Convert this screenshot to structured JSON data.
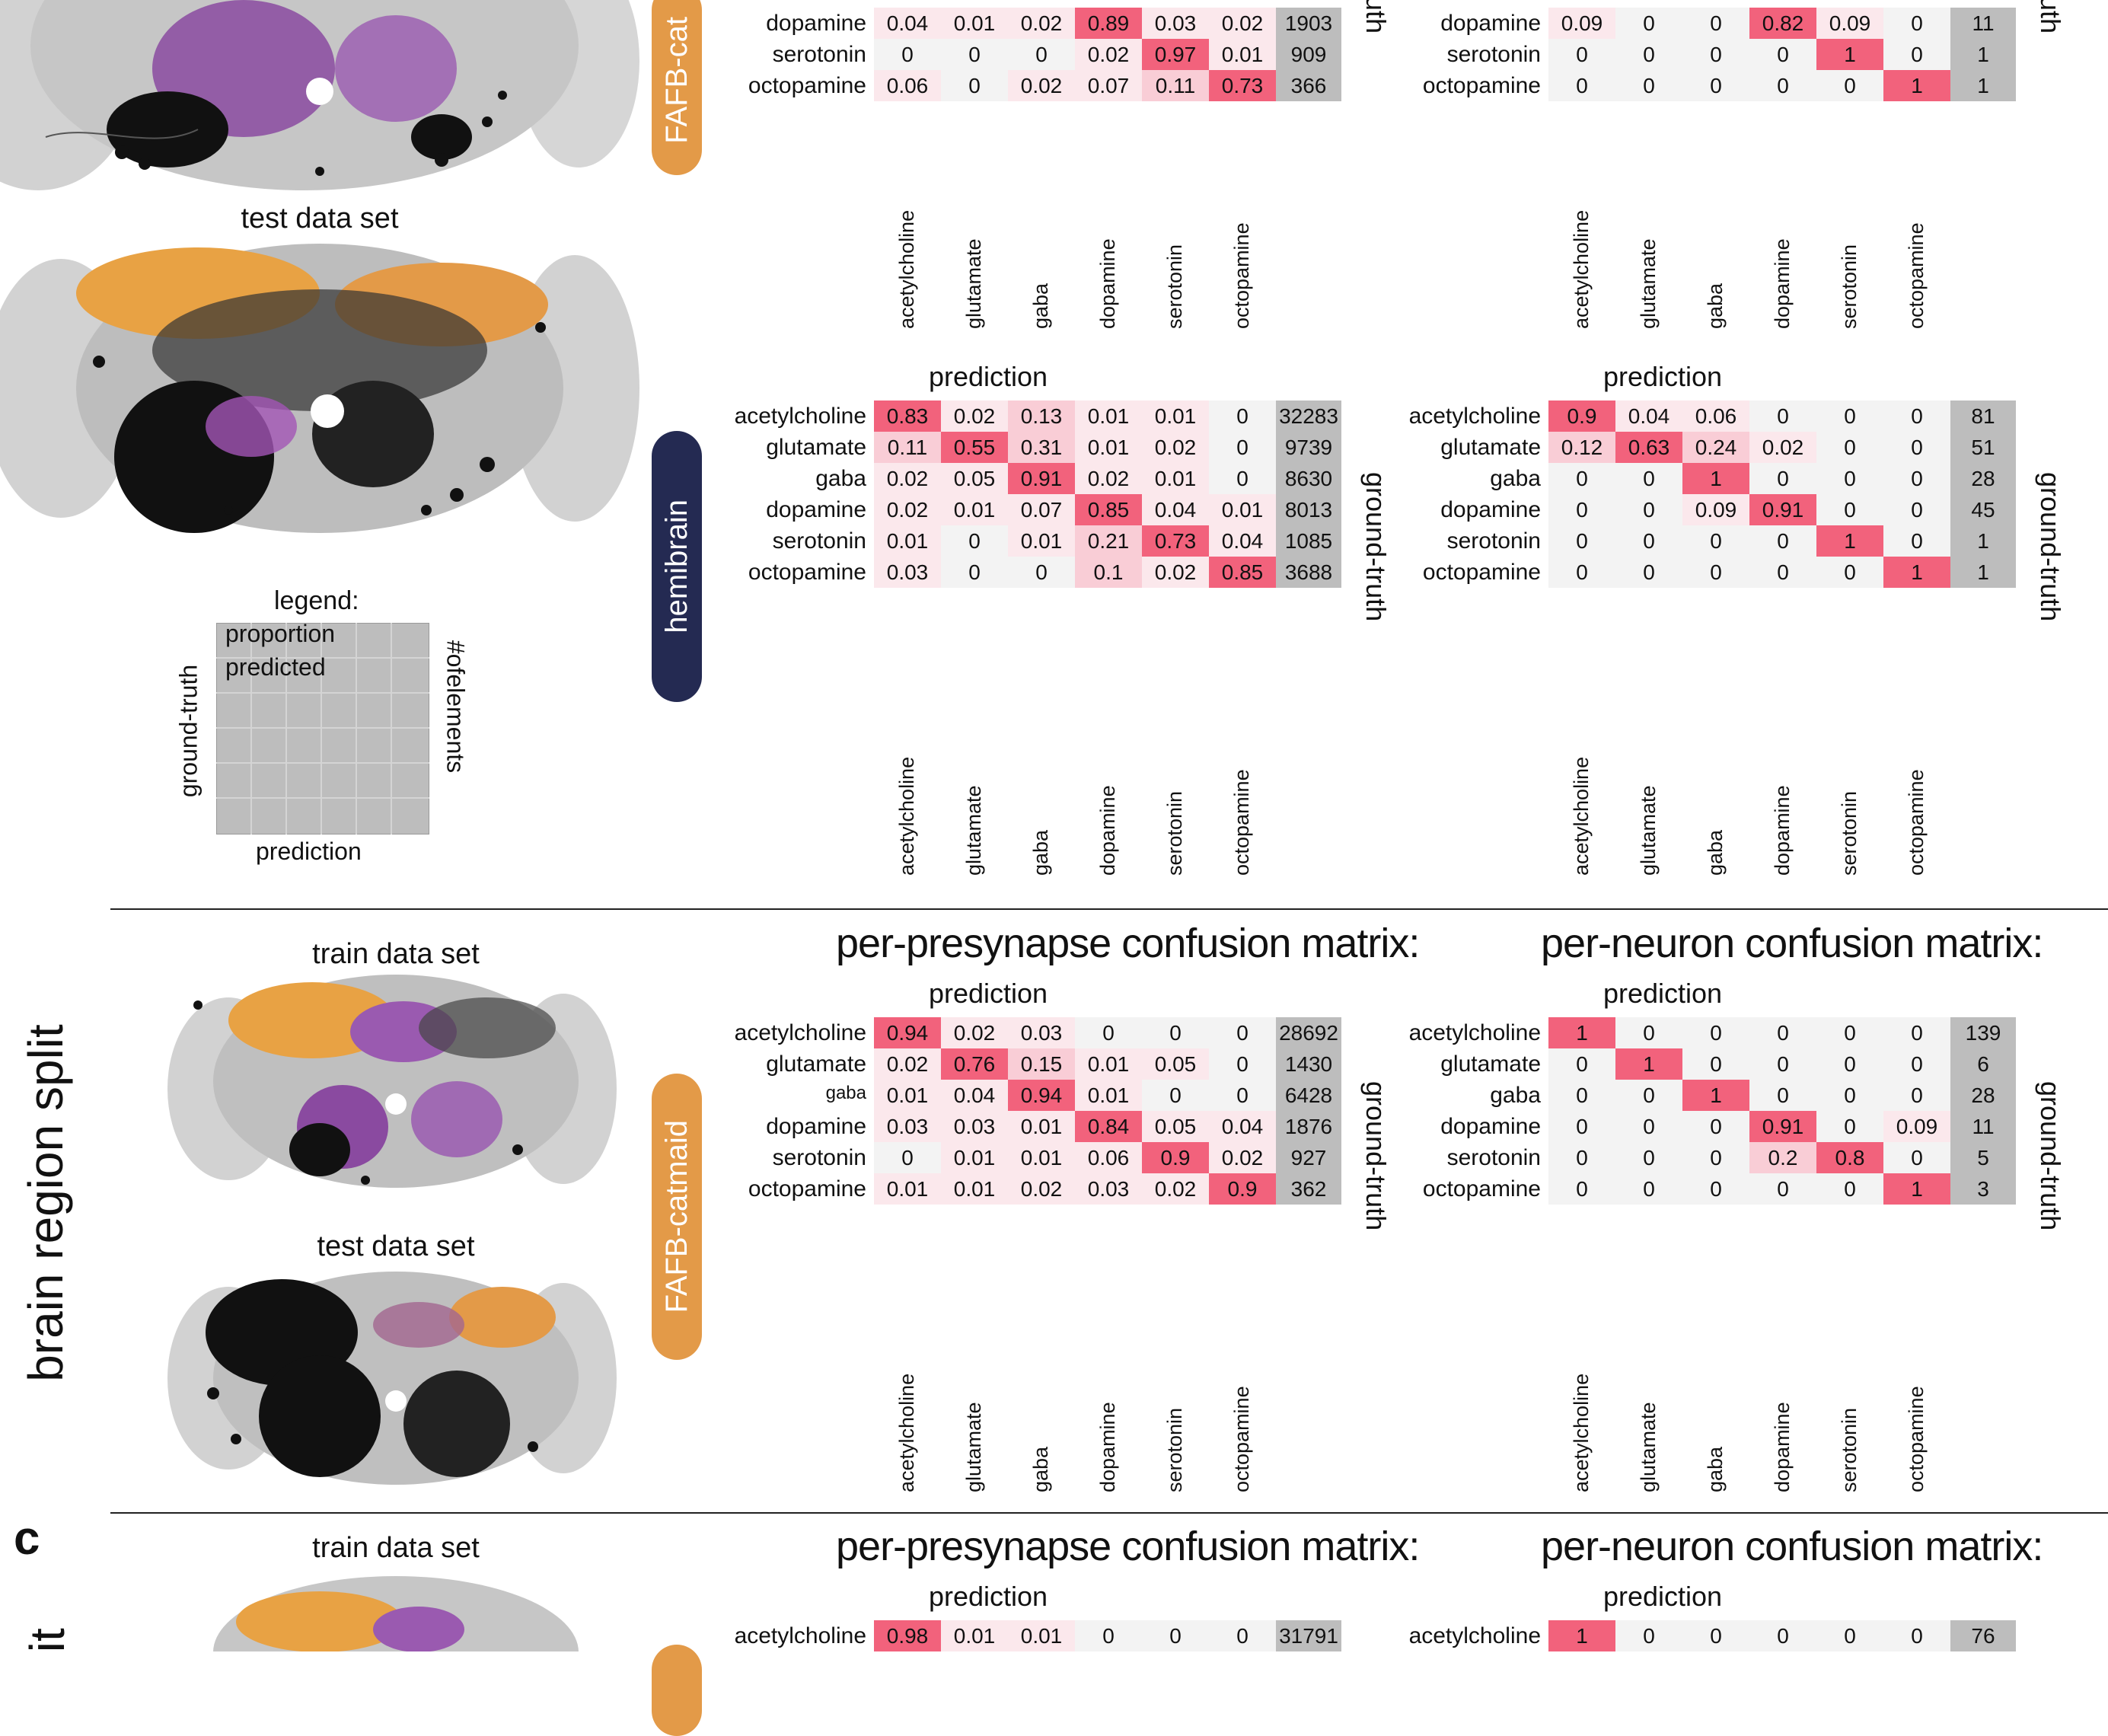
{
  "colors": {
    "diag": "#f2627c",
    "mid": "#f9cdd6",
    "low": "#fbe8ec",
    "zero": "#f3f3f3",
    "count_bg": "#bdbdbd",
    "fafb_pill": "#e39a48",
    "hemibrain_pill": "#242a52"
  },
  "section_labels": {
    "brain_region_split": "brain region split",
    "c": "c",
    "it": "it"
  },
  "legend": {
    "title": "legend:",
    "proportion": "proportion",
    "predicted": "predicted",
    "ground_truth": "ground-truth",
    "nelements": "#ofelements",
    "prediction": "prediction"
  },
  "datasets": {
    "test_top": "test data set",
    "train_mid": "train data set",
    "test_mid": "test data set",
    "train_bottom": "train data set"
  },
  "pills": {
    "top": "FAFB-cat",
    "hemibrain": "hemibrain",
    "mid": "FAFB-catmaid"
  },
  "common": {
    "prediction": "prediction",
    "ground_truth": "ground-truth",
    "ground_truth_cut": "d-truth",
    "presyn_title": "per-presynapse confusion matrix:",
    "neuron_title": "per-neuron confusion matrix:",
    "classes": [
      "acetylcholine",
      "glutamate",
      "gaba",
      "dopamine",
      "serotonin",
      "octopamine"
    ]
  },
  "matrices": {
    "top_presyn": {
      "rows": [
        {
          "label": "dopamine",
          "values": [
            "0.04",
            "0.01",
            "0.02",
            "0.89",
            "0.03",
            "0.02"
          ],
          "count": "1903"
        },
        {
          "label": "serotonin",
          "values": [
            "0",
            "0",
            "0",
            "0.02",
            "0.97",
            "0.01"
          ],
          "count": "909"
        },
        {
          "label": "octopamine",
          "values": [
            "0.06",
            "0",
            "0.02",
            "0.07",
            "0.11",
            "0.73"
          ],
          "count": "366"
        }
      ]
    },
    "top_neuron": {
      "rows": [
        {
          "label": "dopamine",
          "values": [
            "0.09",
            "0",
            "0",
            "0.82",
            "0.09",
            "0"
          ],
          "count": "11"
        },
        {
          "label": "serotonin",
          "values": [
            "0",
            "0",
            "0",
            "0",
            "1",
            "0"
          ],
          "count": "1"
        },
        {
          "label": "octopamine",
          "values": [
            "0",
            "0",
            "0",
            "0",
            "0",
            "1"
          ],
          "count": "1"
        }
      ]
    },
    "hemi_presyn": {
      "rows": [
        {
          "label": "acetylcholine",
          "values": [
            "0.83",
            "0.02",
            "0.13",
            "0.01",
            "0.01",
            "0"
          ],
          "count": "32283"
        },
        {
          "label": "glutamate",
          "values": [
            "0.11",
            "0.55",
            "0.31",
            "0.01",
            "0.02",
            "0"
          ],
          "count": "9739"
        },
        {
          "label": "gaba",
          "values": [
            "0.02",
            "0.05",
            "0.91",
            "0.02",
            "0.01",
            "0"
          ],
          "count": "8630"
        },
        {
          "label": "dopamine",
          "values": [
            "0.02",
            "0.01",
            "0.07",
            "0.85",
            "0.04",
            "0.01"
          ],
          "count": "8013"
        },
        {
          "label": "serotonin",
          "values": [
            "0.01",
            "0",
            "0.01",
            "0.21",
            "0.73",
            "0.04"
          ],
          "count": "1085"
        },
        {
          "label": "octopamine",
          "values": [
            "0.03",
            "0",
            "0",
            "0.1",
            "0.02",
            "0.85"
          ],
          "count": "3688"
        }
      ]
    },
    "hemi_neuron": {
      "rows": [
        {
          "label": "acetylcholine",
          "values": [
            "0.9",
            "0.04",
            "0.06",
            "0",
            "0",
            "0"
          ],
          "count": "81"
        },
        {
          "label": "glutamate",
          "values": [
            "0.12",
            "0.63",
            "0.24",
            "0.02",
            "0",
            "0"
          ],
          "count": "51"
        },
        {
          "label": "gaba",
          "values": [
            "0",
            "0",
            "1",
            "0",
            "0",
            "0"
          ],
          "count": "28"
        },
        {
          "label": "dopamine",
          "values": [
            "0",
            "0",
            "0.09",
            "0.91",
            "0",
            "0"
          ],
          "count": "45"
        },
        {
          "label": "serotonin",
          "values": [
            "0",
            "0",
            "0",
            "0",
            "1",
            "0"
          ],
          "count": "1"
        },
        {
          "label": "octopamine",
          "values": [
            "0",
            "0",
            "0",
            "0",
            "0",
            "1"
          ],
          "count": "1"
        }
      ]
    },
    "mid_presyn": {
      "rows": [
        {
          "label": "acetylcholine",
          "values": [
            "0.94",
            "0.02",
            "0.03",
            "0",
            "0",
            "0"
          ],
          "count": "28692"
        },
        {
          "label": "glutamate",
          "values": [
            "0.02",
            "0.76",
            "0.15",
            "0.01",
            "0.05",
            "0"
          ],
          "count": "1430"
        },
        {
          "label": "gaba",
          "values": [
            "0.01",
            "0.04",
            "0.94",
            "0.01",
            "0",
            "0"
          ],
          "count": "6428"
        },
        {
          "label": "dopamine",
          "values": [
            "0.03",
            "0.03",
            "0.01",
            "0.84",
            "0.05",
            "0.04"
          ],
          "count": "1876"
        },
        {
          "label": "serotonin",
          "values": [
            "0",
            "0.01",
            "0.01",
            "0.06",
            "0.9",
            "0.02"
          ],
          "count": "927"
        },
        {
          "label": "octopamine",
          "values": [
            "0.01",
            "0.01",
            "0.02",
            "0.03",
            "0.02",
            "0.9"
          ],
          "count": "362"
        }
      ]
    },
    "mid_neuron": {
      "rows": [
        {
          "label": "acetylcholine",
          "values": [
            "1",
            "0",
            "0",
            "0",
            "0",
            "0"
          ],
          "count": "139"
        },
        {
          "label": "glutamate",
          "values": [
            "0",
            "1",
            "0",
            "0",
            "0",
            "0"
          ],
          "count": "6"
        },
        {
          "label": "gaba",
          "values": [
            "0",
            "0",
            "1",
            "0",
            "0",
            "0"
          ],
          "count": "28"
        },
        {
          "label": "dopamine",
          "values": [
            "0",
            "0",
            "0",
            "0.91",
            "0",
            "0.09"
          ],
          "count": "11"
        },
        {
          "label": "serotonin",
          "values": [
            "0",
            "0",
            "0",
            "0.2",
            "0.8",
            "0"
          ],
          "count": "5"
        },
        {
          "label": "octopamine",
          "values": [
            "0",
            "0",
            "0",
            "0",
            "0",
            "1"
          ],
          "count": "3"
        }
      ]
    },
    "bot_presyn": {
      "rows": [
        {
          "label": "acetylcholine",
          "values": [
            "0.98",
            "0.01",
            "0.01",
            "0",
            "0",
            "0"
          ],
          "count": "31791"
        }
      ]
    },
    "bot_neuron": {
      "rows": [
        {
          "label": "acetylcholine",
          "values": [
            "1",
            "0",
            "0",
            "0",
            "0",
            "0"
          ],
          "count": "76"
        }
      ]
    }
  }
}
